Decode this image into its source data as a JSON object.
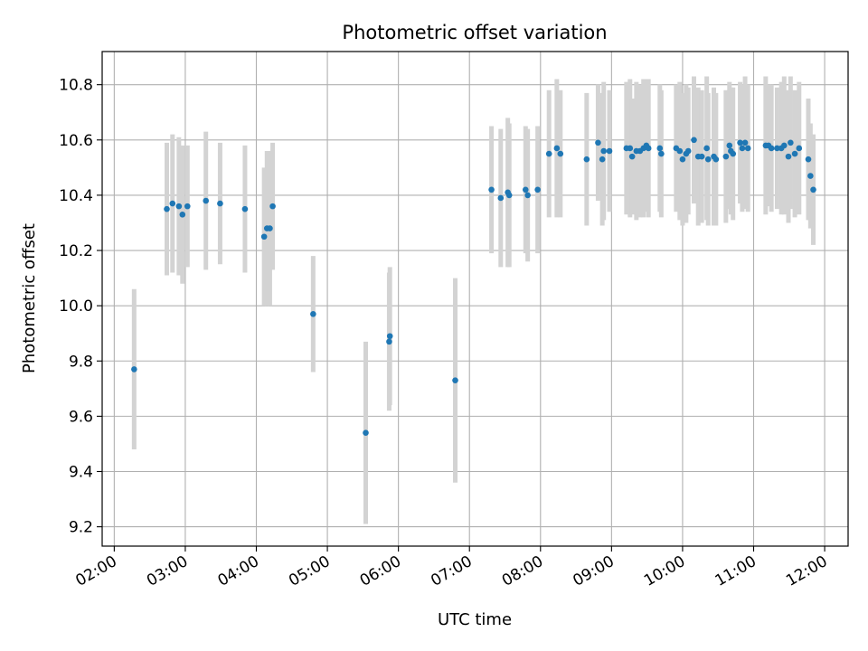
{
  "chart_data": {
    "type": "scatter",
    "title": "Photometric offset variation",
    "xlabel": "UTC time",
    "ylabel": "Photometric offset",
    "x_unit": "hours UTC",
    "xlim": [
      1.83,
      12.33
    ],
    "ylim": [
      9.13,
      10.92
    ],
    "x_ticks": [
      {
        "v": 2,
        "label": "02:00"
      },
      {
        "v": 3,
        "label": "03:00"
      },
      {
        "v": 4,
        "label": "04:00"
      },
      {
        "v": 5,
        "label": "05:00"
      },
      {
        "v": 6,
        "label": "06:00"
      },
      {
        "v": 7,
        "label": "07:00"
      },
      {
        "v": 8,
        "label": "08:00"
      },
      {
        "v": 9,
        "label": "09:00"
      },
      {
        "v": 10,
        "label": "10:00"
      },
      {
        "v": 11,
        "label": "11:00"
      },
      {
        "v": 12,
        "label": "12:00"
      }
    ],
    "y_ticks": [
      {
        "v": 9.2,
        "label": "9.2"
      },
      {
        "v": 9.4,
        "label": "9.4"
      },
      {
        "v": 9.6,
        "label": "9.6"
      },
      {
        "v": 9.8,
        "label": "9.8"
      },
      {
        "v": 10.0,
        "label": "10.0"
      },
      {
        "v": 10.2,
        "label": "10.2"
      },
      {
        "v": 10.4,
        "label": "10.4"
      },
      {
        "v": 10.6,
        "label": "10.6"
      },
      {
        "v": 10.8,
        "label": "10.8"
      }
    ],
    "grid": true,
    "point_color": "#1f77b4",
    "errorbar_color": "#d3d3d3",
    "points": [
      [
        2.28,
        9.77,
        0.29
      ],
      [
        2.74,
        10.35,
        0.24
      ],
      [
        2.82,
        10.37,
        0.25
      ],
      [
        2.91,
        10.36,
        0.25
      ],
      [
        2.96,
        10.33,
        0.25
      ],
      [
        3.03,
        10.36,
        0.22
      ],
      [
        3.29,
        10.38,
        0.25
      ],
      [
        3.49,
        10.37,
        0.22
      ],
      [
        3.84,
        10.35,
        0.23
      ],
      [
        4.11,
        10.25,
        0.25
      ],
      [
        4.15,
        10.28,
        0.28
      ],
      [
        4.19,
        10.28,
        0.28
      ],
      [
        4.23,
        10.36,
        0.23
      ],
      [
        4.8,
        9.97,
        0.21
      ],
      [
        5.54,
        9.54,
        0.33
      ],
      [
        5.87,
        9.87,
        0.25
      ],
      [
        5.88,
        9.89,
        0.25
      ],
      [
        6.8,
        9.73,
        0.37
      ],
      [
        7.31,
        10.42,
        0.23
      ],
      [
        7.44,
        10.39,
        0.25
      ],
      [
        7.54,
        10.41,
        0.27
      ],
      [
        7.56,
        10.4,
        0.26
      ],
      [
        7.79,
        10.42,
        0.23
      ],
      [
        7.82,
        10.4,
        0.24
      ],
      [
        7.96,
        10.42,
        0.23
      ],
      [
        8.12,
        10.55,
        0.23
      ],
      [
        8.23,
        10.57,
        0.25
      ],
      [
        8.28,
        10.55,
        0.23
      ],
      [
        8.65,
        10.53,
        0.24
      ],
      [
        8.81,
        10.59,
        0.21
      ],
      [
        8.87,
        10.53,
        0.24
      ],
      [
        8.89,
        10.56,
        0.25
      ],
      [
        8.97,
        10.56,
        0.22
      ],
      [
        9.21,
        10.57,
        0.24
      ],
      [
        9.26,
        10.57,
        0.25
      ],
      [
        9.29,
        10.54,
        0.21
      ],
      [
        9.35,
        10.56,
        0.25
      ],
      [
        9.4,
        10.56,
        0.24
      ],
      [
        9.45,
        10.57,
        0.25
      ],
      [
        9.49,
        10.58,
        0.24
      ],
      [
        9.52,
        10.57,
        0.25
      ],
      [
        9.68,
        10.57,
        0.23
      ],
      [
        9.7,
        10.55,
        0.23
      ],
      [
        9.91,
        10.57,
        0.23
      ],
      [
        9.96,
        10.56,
        0.25
      ],
      [
        10.0,
        10.53,
        0.24
      ],
      [
        10.05,
        10.55,
        0.25
      ],
      [
        10.08,
        10.56,
        0.23
      ],
      [
        10.16,
        10.6,
        0.23
      ],
      [
        10.22,
        10.54,
        0.25
      ],
      [
        10.27,
        10.54,
        0.24
      ],
      [
        10.34,
        10.57,
        0.26
      ],
      [
        10.36,
        10.53,
        0.24
      ],
      [
        10.44,
        10.54,
        0.25
      ],
      [
        10.47,
        10.53,
        0.24
      ],
      [
        10.61,
        10.54,
        0.24
      ],
      [
        10.66,
        10.58,
        0.23
      ],
      [
        10.68,
        10.56,
        0.23
      ],
      [
        10.71,
        10.55,
        0.24
      ],
      [
        10.81,
        10.59,
        0.22
      ],
      [
        10.84,
        10.57,
        0.23
      ],
      [
        10.88,
        10.59,
        0.24
      ],
      [
        10.92,
        10.57,
        0.23
      ],
      [
        11.17,
        10.58,
        0.25
      ],
      [
        11.21,
        10.58,
        0.22
      ],
      [
        11.25,
        10.57,
        0.23
      ],
      [
        11.33,
        10.57,
        0.22
      ],
      [
        11.39,
        10.57,
        0.24
      ],
      [
        11.43,
        10.58,
        0.25
      ],
      [
        11.49,
        10.54,
        0.24
      ],
      [
        11.52,
        10.59,
        0.24
      ],
      [
        11.58,
        10.55,
        0.23
      ],
      [
        11.64,
        10.57,
        0.24
      ],
      [
        11.77,
        10.53,
        0.22
      ],
      [
        11.8,
        10.47,
        0.19
      ],
      [
        11.84,
        10.42,
        0.2
      ]
    ]
  }
}
